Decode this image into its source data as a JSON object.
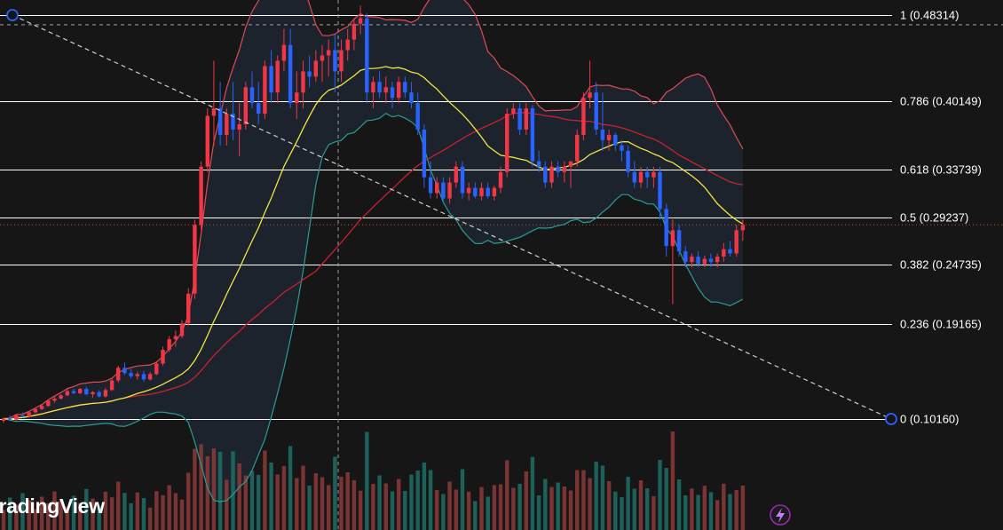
{
  "watermark": "TradingView",
  "colors": {
    "background": "#161616",
    "candle_up": "#f23645",
    "candle_down": "#2962ff",
    "volume_up": "#8c3a3a",
    "volume_down": "#1f6f66",
    "bb_basis": "#f0e641",
    "bb_upper": "#e04b55",
    "bb_lower": "#2a9d8f",
    "ma_long": "#c8212f",
    "fib_line": "#ffffff",
    "trend_line": "#cfcfcf",
    "anchor": "#2962ff"
  },
  "chart_data": {
    "type": "candlestick",
    "overlay": [
      "fibonacci_retracement",
      "bollinger_bands",
      "moving_average"
    ],
    "fib_levels": [
      {
        "ratio": "1",
        "label": "1 (0.48314)",
        "price": 0.48314
      },
      {
        "ratio": "0.786",
        "label": "0.786 (0.40149)",
        "price": 0.40149
      },
      {
        "ratio": "0.618",
        "label": "0.618 (0.33739)",
        "price": 0.33739
      },
      {
        "ratio": "0.5",
        "label": "0.5 (0.29237)",
        "price": 0.29237
      },
      {
        "ratio": "0.382",
        "label": "0.382 (0.24735)",
        "price": 0.24735
      },
      {
        "ratio": "0.236",
        "label": "0.236 (0.19165)",
        "price": 0.19165
      },
      {
        "ratio": "0",
        "label": "0 (0.10160)",
        "price": 0.1016
      }
    ],
    "price_range": [
      0.085,
      0.535
    ],
    "crosshair_price": 0.474,
    "last_price_line": 0.285,
    "candles": [
      [
        0.1,
        0.103,
        0.098,
        0.102
      ],
      [
        0.102,
        0.105,
        0.1,
        0.101
      ],
      [
        0.101,
        0.106,
        0.1,
        0.105
      ],
      [
        0.105,
        0.108,
        0.103,
        0.104
      ],
      [
        0.104,
        0.109,
        0.103,
        0.108
      ],
      [
        0.108,
        0.112,
        0.107,
        0.111
      ],
      [
        0.111,
        0.115,
        0.11,
        0.114
      ],
      [
        0.114,
        0.12,
        0.113,
        0.119
      ],
      [
        0.119,
        0.123,
        0.117,
        0.121
      ],
      [
        0.121,
        0.125,
        0.12,
        0.124
      ],
      [
        0.124,
        0.13,
        0.123,
        0.128
      ],
      [
        0.128,
        0.13,
        0.125,
        0.126
      ],
      [
        0.126,
        0.131,
        0.125,
        0.13
      ],
      [
        0.13,
        0.132,
        0.124,
        0.125
      ],
      [
        0.125,
        0.128,
        0.122,
        0.127
      ],
      [
        0.127,
        0.129,
        0.122,
        0.123
      ],
      [
        0.123,
        0.131,
        0.122,
        0.129
      ],
      [
        0.129,
        0.14,
        0.128,
        0.138
      ],
      [
        0.138,
        0.152,
        0.136,
        0.15
      ],
      [
        0.15,
        0.155,
        0.143,
        0.145
      ],
      [
        0.145,
        0.149,
        0.14,
        0.142
      ],
      [
        0.142,
        0.146,
        0.139,
        0.144
      ],
      [
        0.144,
        0.147,
        0.137,
        0.139
      ],
      [
        0.139,
        0.146,
        0.138,
        0.144
      ],
      [
        0.144,
        0.156,
        0.143,
        0.154
      ],
      [
        0.154,
        0.17,
        0.152,
        0.167
      ],
      [
        0.167,
        0.18,
        0.165,
        0.177
      ],
      [
        0.177,
        0.185,
        0.17,
        0.18
      ],
      [
        0.18,
        0.195,
        0.178,
        0.192
      ],
      [
        0.192,
        0.225,
        0.19,
        0.22
      ],
      [
        0.22,
        0.29,
        0.215,
        0.285
      ],
      [
        0.285,
        0.345,
        0.28,
        0.34
      ],
      [
        0.34,
        0.395,
        0.335,
        0.388
      ],
      [
        0.388,
        0.44,
        0.36,
        0.395
      ],
      [
        0.395,
        0.42,
        0.36,
        0.37
      ],
      [
        0.37,
        0.395,
        0.36,
        0.39
      ],
      [
        0.39,
        0.42,
        0.365,
        0.375
      ],
      [
        0.375,
        0.4,
        0.35,
        0.38
      ],
      [
        0.38,
        0.42,
        0.375,
        0.415
      ],
      [
        0.415,
        0.43,
        0.395,
        0.4
      ],
      [
        0.4,
        0.42,
        0.38,
        0.39
      ],
      [
        0.39,
        0.44,
        0.385,
        0.435
      ],
      [
        0.435,
        0.45,
        0.4,
        0.41
      ],
      [
        0.41,
        0.445,
        0.4,
        0.44
      ],
      [
        0.44,
        0.47,
        0.43,
        0.455
      ],
      [
        0.455,
        0.47,
        0.395,
        0.4
      ],
      [
        0.4,
        0.43,
        0.385,
        0.41
      ],
      [
        0.41,
        0.44,
        0.395,
        0.43
      ],
      [
        0.43,
        0.445,
        0.415,
        0.425
      ],
      [
        0.425,
        0.45,
        0.42,
        0.44
      ],
      [
        0.44,
        0.455,
        0.42,
        0.445
      ],
      [
        0.445,
        0.46,
        0.425,
        0.45
      ],
      [
        0.45,
        0.465,
        0.41,
        0.43
      ],
      [
        0.43,
        0.46,
        0.42,
        0.45
      ],
      [
        0.45,
        0.47,
        0.44,
        0.46
      ],
      [
        0.46,
        0.48,
        0.45,
        0.475
      ],
      [
        0.475,
        0.492,
        0.465,
        0.48
      ],
      [
        0.48,
        0.485,
        0.4,
        0.41
      ],
      [
        0.41,
        0.425,
        0.395,
        0.42
      ],
      [
        0.42,
        0.43,
        0.405,
        0.41
      ],
      [
        0.41,
        0.425,
        0.4,
        0.415
      ],
      [
        0.415,
        0.42,
        0.395,
        0.405
      ],
      [
        0.405,
        0.425,
        0.4,
        0.42
      ],
      [
        0.42,
        0.425,
        0.405,
        0.41
      ],
      [
        0.41,
        0.42,
        0.395,
        0.4
      ],
      [
        0.4,
        0.41,
        0.37,
        0.375
      ],
      [
        0.375,
        0.38,
        0.32,
        0.33
      ],
      [
        0.33,
        0.345,
        0.31,
        0.315
      ],
      [
        0.315,
        0.33,
        0.31,
        0.325
      ],
      [
        0.325,
        0.33,
        0.305,
        0.31
      ],
      [
        0.31,
        0.33,
        0.305,
        0.325
      ],
      [
        0.325,
        0.345,
        0.32,
        0.34
      ],
      [
        0.34,
        0.345,
        0.31,
        0.315
      ],
      [
        0.315,
        0.325,
        0.308,
        0.32
      ],
      [
        0.32,
        0.325,
        0.31,
        0.312
      ],
      [
        0.312,
        0.325,
        0.308,
        0.32
      ],
      [
        0.32,
        0.325,
        0.31,
        0.312
      ],
      [
        0.312,
        0.322,
        0.308,
        0.32
      ],
      [
        0.32,
        0.34,
        0.315,
        0.335
      ],
      [
        0.335,
        0.395,
        0.33,
        0.39
      ],
      [
        0.39,
        0.4,
        0.385,
        0.395
      ],
      [
        0.395,
        0.4,
        0.37,
        0.375
      ],
      [
        0.375,
        0.4,
        0.37,
        0.395
      ],
      [
        0.395,
        0.398,
        0.34,
        0.345
      ],
      [
        0.345,
        0.355,
        0.335,
        0.34
      ],
      [
        0.34,
        0.345,
        0.32,
        0.325
      ],
      [
        0.325,
        0.345,
        0.32,
        0.34
      ],
      [
        0.34,
        0.345,
        0.33,
        0.335
      ],
      [
        0.335,
        0.345,
        0.325,
        0.34
      ],
      [
        0.34,
        0.345,
        0.32,
        0.345
      ],
      [
        0.345,
        0.375,
        0.34,
        0.37
      ],
      [
        0.37,
        0.41,
        0.365,
        0.405
      ],
      [
        0.405,
        0.44,
        0.395,
        0.41
      ],
      [
        0.41,
        0.42,
        0.37,
        0.375
      ],
      [
        0.375,
        0.41,
        0.355,
        0.365
      ],
      [
        0.365,
        0.375,
        0.355,
        0.37
      ],
      [
        0.37,
        0.372,
        0.355,
        0.36
      ],
      [
        0.36,
        0.365,
        0.345,
        0.355
      ],
      [
        0.355,
        0.36,
        0.33,
        0.335
      ],
      [
        0.335,
        0.345,
        0.32,
        0.325
      ],
      [
        0.325,
        0.34,
        0.32,
        0.335
      ],
      [
        0.335,
        0.34,
        0.32,
        0.33
      ],
      [
        0.33,
        0.34,
        0.32,
        0.335
      ],
      [
        0.335,
        0.34,
        0.29,
        0.3
      ],
      [
        0.3,
        0.305,
        0.255,
        0.265
      ],
      [
        0.265,
        0.29,
        0.21,
        0.28
      ],
      [
        0.28,
        0.285,
        0.255,
        0.26
      ],
      [
        0.26,
        0.265,
        0.245,
        0.25
      ],
      [
        0.25,
        0.258,
        0.245,
        0.255
      ],
      [
        0.255,
        0.26,
        0.245,
        0.248
      ],
      [
        0.248,
        0.256,
        0.245,
        0.253
      ],
      [
        0.253,
        0.258,
        0.245,
        0.25
      ],
      [
        0.25,
        0.258,
        0.245,
        0.255
      ],
      [
        0.255,
        0.268,
        0.25,
        0.262
      ],
      [
        0.262,
        0.27,
        0.255,
        0.258
      ],
      [
        0.258,
        0.285,
        0.255,
        0.28
      ],
      [
        0.28,
        0.29,
        0.27,
        0.285
      ]
    ]
  }
}
